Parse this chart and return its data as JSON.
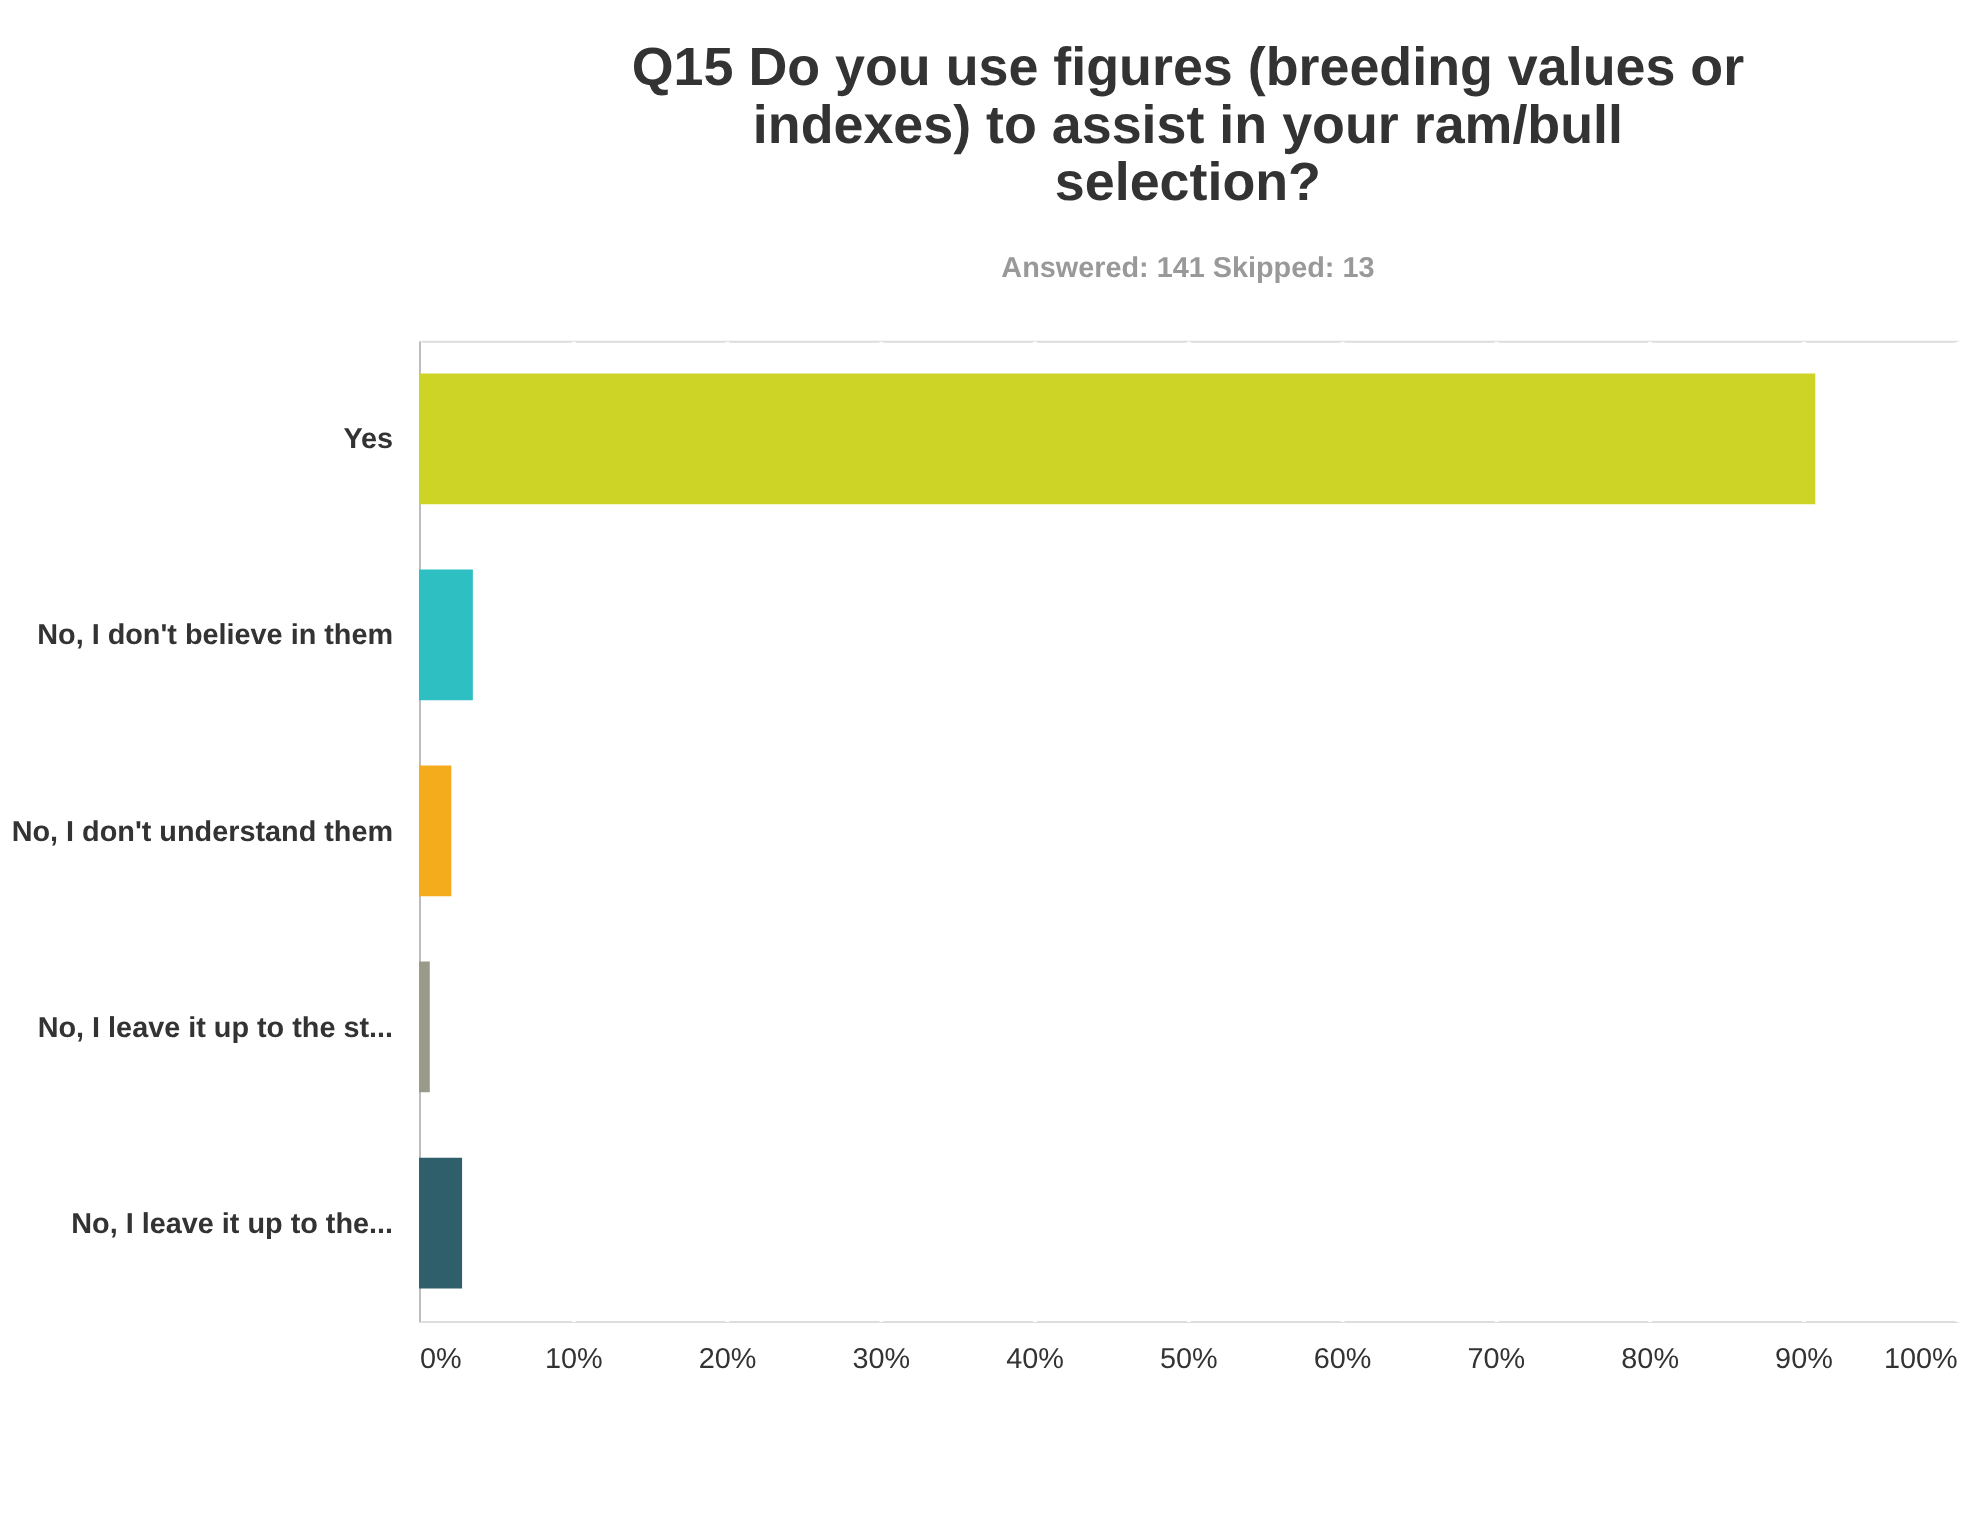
{
  "chart_data": {
    "type": "bar",
    "orientation": "horizontal",
    "title": "Q15 Do you use figures (breeding values or indexes) to assist in your ram/bull selection?",
    "subtitle": "Answered: 141    Skipped: 13",
    "categories": [
      "Yes",
      "No, I don't believe in them",
      "No, I don't understand them",
      "No, I leave it up to the st...",
      "No, I leave it up to the..."
    ],
    "values": [
      90.8,
      3.5,
      2.1,
      0.7,
      2.8
    ],
    "colors": [
      "#cdd426",
      "#2dbfc2",
      "#f4ac1d",
      "#9a9a8a",
      "#2e5f6b"
    ],
    "xlim": [
      0,
      100
    ],
    "xticks": [
      {
        "value": 0,
        "label": "0%"
      },
      {
        "value": 10,
        "label": "10%"
      },
      {
        "value": 20,
        "label": "20%"
      },
      {
        "value": 30,
        "label": "30%"
      },
      {
        "value": 40,
        "label": "40%"
      },
      {
        "value": 50,
        "label": "50%"
      },
      {
        "value": 60,
        "label": "60%"
      },
      {
        "value": 70,
        "label": "70%"
      },
      {
        "value": 80,
        "label": "80%"
      },
      {
        "value": 90,
        "label": "90%"
      },
      {
        "value": 100,
        "label": "100%"
      }
    ],
    "grid": "x"
  }
}
